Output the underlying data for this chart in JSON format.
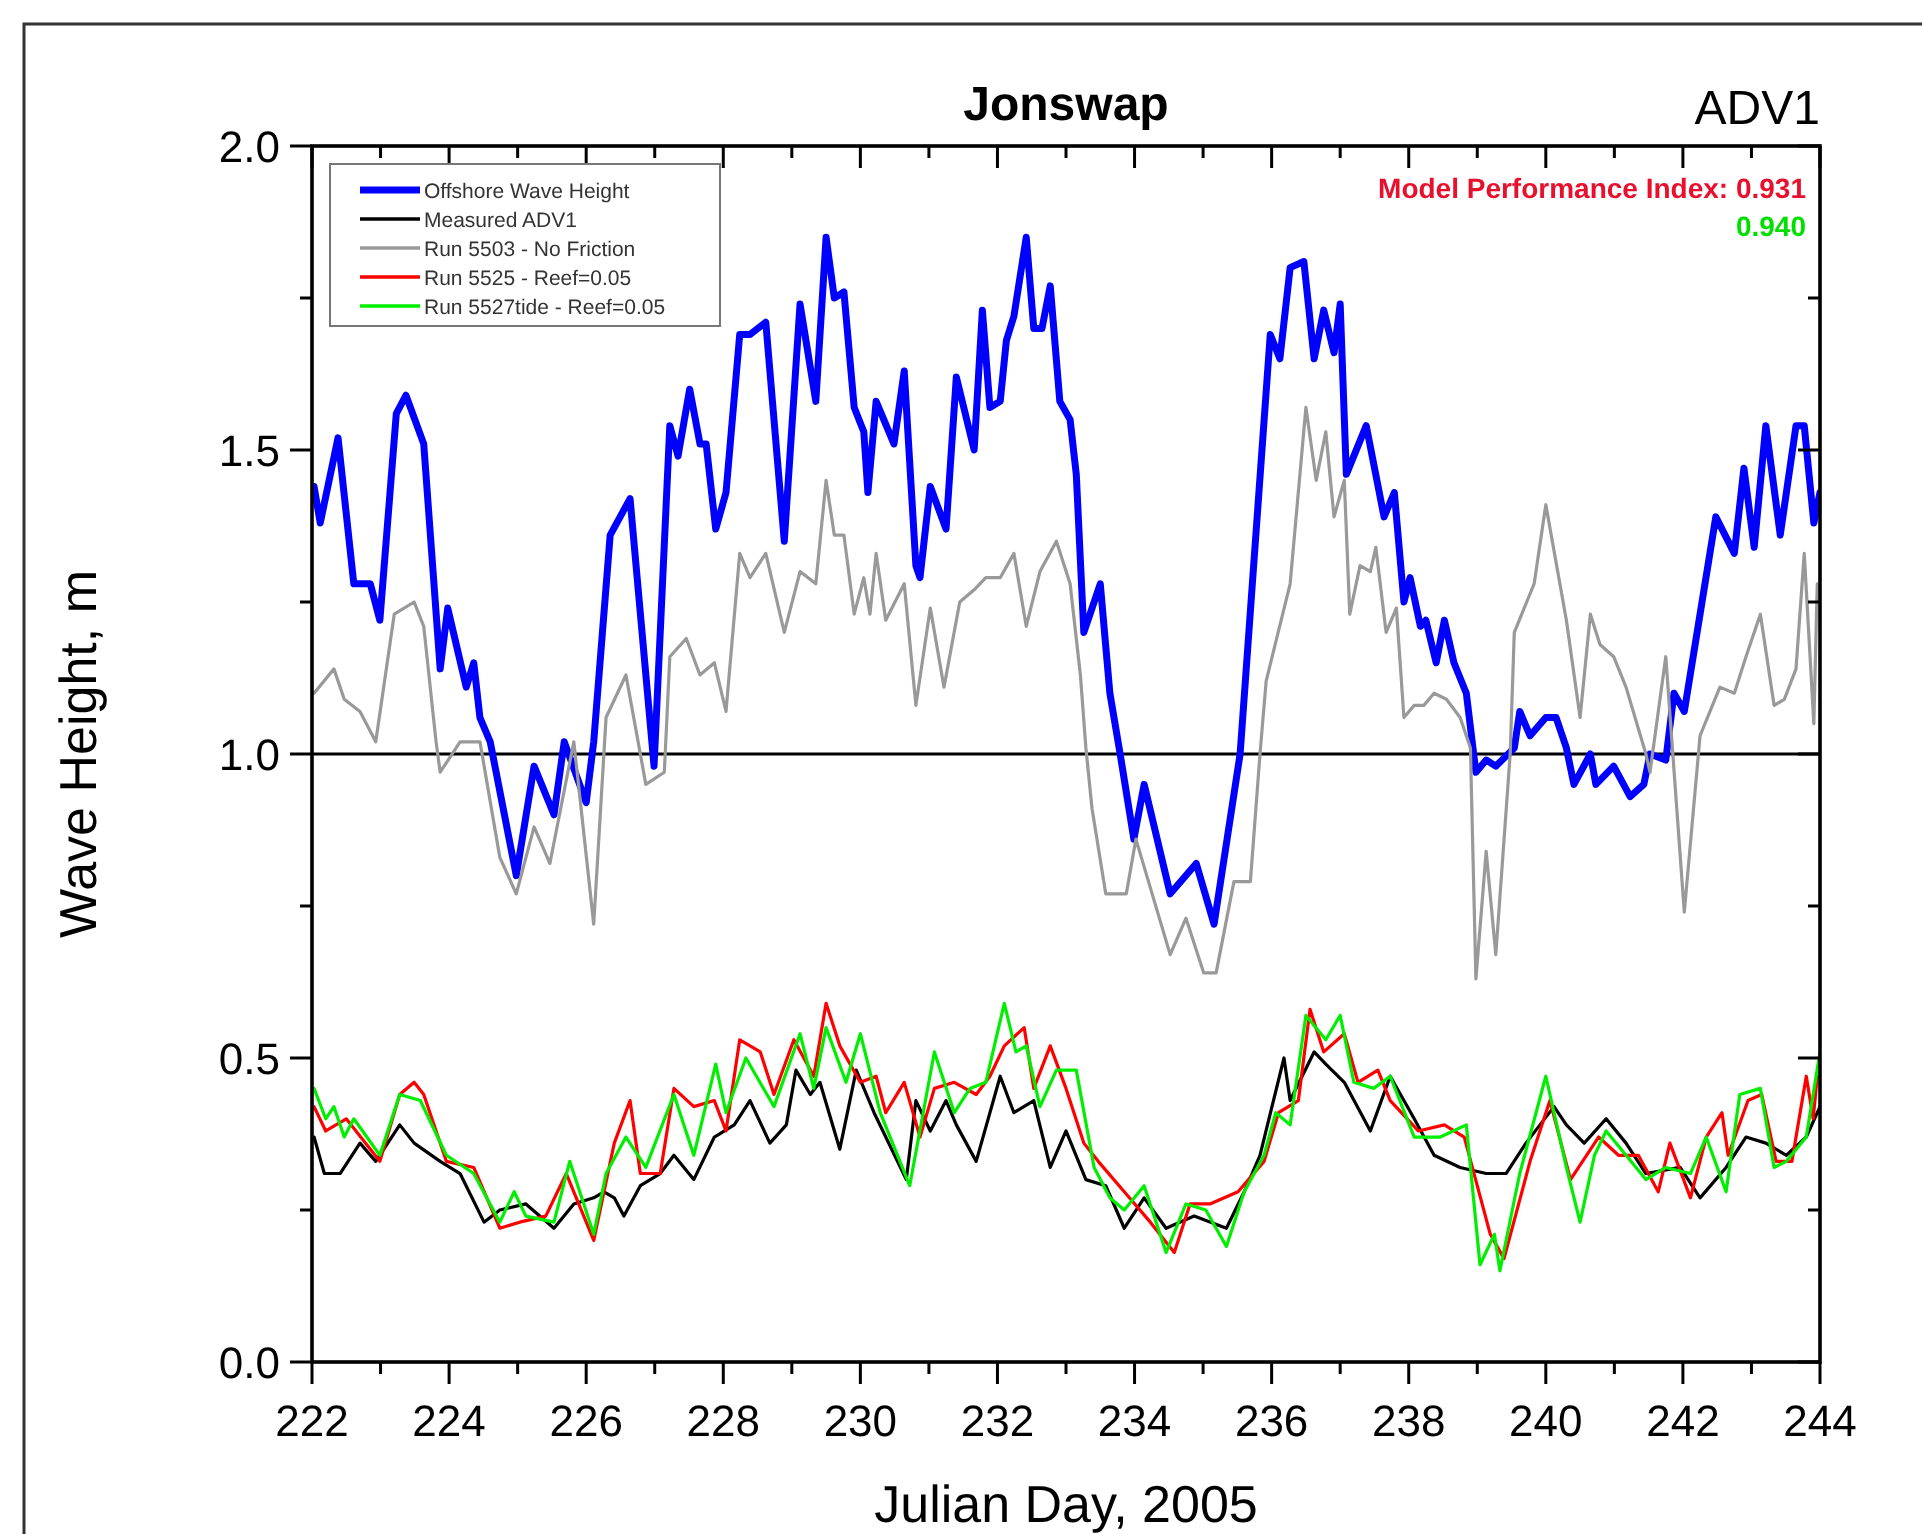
{
  "chart_data": {
    "type": "line",
    "title": "Jonswap",
    "subtitle": "ADV1",
    "xlabel": "Julian Day, 2005",
    "ylabel": "Wave Height, m",
    "annotations": [
      "Model Performance Index: 0.931",
      "0.940"
    ],
    "xlim": [
      222,
      244
    ],
    "ylim": [
      0,
      2
    ],
    "xticks": [
      222,
      {
        "value": 223,
        "label": null
      },
      224,
      {
        "value": 225,
        "label": null
      },
      226,
      {
        "value": 227,
        "label": null
      },
      228,
      {
        "value": 229,
        "label": null
      },
      230,
      {
        "value": 231,
        "label": null
      },
      232,
      {
        "value": 233,
        "label": null
      },
      234,
      {
        "value": 235,
        "label": null
      },
      236,
      {
        "value": 237,
        "label": null
      },
      238,
      {
        "value": 239,
        "label": null
      },
      240,
      {
        "value": 241,
        "label": null
      },
      242,
      {
        "value": 243,
        "label": null
      },
      244
    ],
    "yticks": [
      {
        "value": 0,
        "label": "0.0"
      },
      {
        "value": 0.25,
        "label": null
      },
      {
        "value": 0.5,
        "label": "0.5"
      },
      {
        "value": 0.75,
        "label": null
      },
      {
        "value": 1,
        "label": "1.0"
      },
      {
        "value": 1.25,
        "label": null
      },
      {
        "value": 1.5,
        "label": "1.5"
      },
      {
        "value": 1.75,
        "label": null
      },
      {
        "value": 2,
        "label": "2.0"
      }
    ],
    "ref_lines": [
      {
        "axis": "y",
        "value": 1,
        "color": "#000000"
      }
    ],
    "legend": "top left",
    "grid": false,
    "marker": "none",
    "line_style": "solid",
    "series": [
      {
        "name": "Offshore Wave Height",
        "color": "#0000ff",
        "x": [
          222.03,
          222.12,
          222.38,
          222.61,
          222.85,
          222.99,
          223.23,
          223.37,
          223.63,
          223.87,
          223.98,
          224.25,
          224.36,
          224.45,
          224.6,
          224.98,
          225.24,
          225.53,
          225.68,
          226.0,
          226.11,
          226.35,
          226.64,
          226.99,
          227.22,
          227.34,
          227.51,
          227.66,
          227.75,
          227.89,
          228.04,
          228.24,
          228.39,
          228.62,
          228.89,
          229.12,
          229.35,
          229.5,
          229.62,
          229.76,
          229.91,
          230.05,
          230.11,
          230.23,
          230.49,
          230.64,
          230.81,
          230.87,
          231.02,
          231.25,
          231.4,
          231.66,
          231.78,
          231.89,
          232.04,
          232.13,
          232.24,
          232.42,
          232.53,
          232.65,
          232.77,
          232.91,
          233.06,
          233.15,
          233.26,
          233.5,
          233.64,
          233.79,
          233.99,
          234.14,
          234.52,
          234.9,
          235.16,
          235.54,
          235.98,
          236.12,
          236.27,
          236.47,
          236.62,
          236.76,
          236.91,
          237.0,
          237.09,
          237.38,
          237.64,
          237.79,
          237.93,
          238.02,
          238.17,
          238.25,
          238.4,
          238.52,
          238.66,
          238.84,
          238.98,
          239.13,
          239.27,
          239.54,
          239.62,
          239.77,
          240.0,
          240.15,
          240.3,
          240.41,
          240.65,
          240.73,
          240.99,
          241.23,
          241.43,
          241.52,
          241.75,
          241.87,
          242.02,
          242.48,
          242.75,
          242.89,
          243.04,
          243.21,
          243.42,
          243.65,
          243.77,
          243.91,
          244.0
        ],
        "values": [
          1.44,
          1.38,
          1.52,
          1.28,
          1.28,
          1.22,
          1.56,
          1.59,
          1.51,
          1.14,
          1.24,
          1.11,
          1.15,
          1.06,
          1.02,
          0.8,
          0.98,
          0.9,
          1.02,
          0.92,
          1.02,
          1.36,
          1.42,
          0.98,
          1.54,
          1.49,
          1.6,
          1.51,
          1.51,
          1.37,
          1.43,
          1.69,
          1.69,
          1.71,
          1.35,
          1.74,
          1.58,
          1.85,
          1.75,
          1.76,
          1.57,
          1.53,
          1.43,
          1.58,
          1.51,
          1.63,
          1.31,
          1.29,
          1.44,
          1.37,
          1.62,
          1.5,
          1.73,
          1.57,
          1.58,
          1.68,
          1.72,
          1.85,
          1.7,
          1.7,
          1.77,
          1.58,
          1.55,
          1.46,
          1.2,
          1.28,
          1.1,
          1.0,
          0.86,
          0.95,
          0.77,
          0.82,
          0.72,
          1.0,
          1.69,
          1.65,
          1.8,
          1.81,
          1.65,
          1.73,
          1.66,
          1.74,
          1.46,
          1.54,
          1.39,
          1.43,
          1.25,
          1.29,
          1.21,
          1.22,
          1.15,
          1.22,
          1.15,
          1.1,
          0.97,
          0.99,
          0.98,
          1.01,
          1.07,
          1.03,
          1.06,
          1.06,
          1.01,
          0.95,
          1.0,
          0.95,
          0.98,
          0.93,
          0.95,
          1.0,
          0.99,
          1.1,
          1.07,
          1.39,
          1.33,
          1.47,
          1.34,
          1.54,
          1.36,
          1.54,
          1.54,
          1.38,
          1.43
        ]
      },
      {
        "name": "Measured ADV1",
        "color": "#000000",
        "x": [
          222.03,
          222.18,
          222.41,
          222.7,
          222.93,
          223.28,
          223.49,
          223.87,
          224.16,
          224.51,
          224.74,
          225.12,
          225.53,
          225.82,
          226.11,
          226.26,
          226.41,
          226.55,
          226.79,
          227.08,
          227.28,
          227.57,
          227.87,
          228.16,
          228.39,
          228.68,
          228.92,
          229.06,
          229.27,
          229.41,
          229.7,
          229.94,
          230.2,
          230.67,
          230.81,
          231.02,
          231.25,
          231.4,
          231.69,
          232.04,
          232.24,
          232.53,
          232.77,
          233.0,
          233.29,
          233.58,
          233.85,
          234.14,
          234.46,
          234.87,
          235.34,
          235.6,
          235.83,
          236.18,
          236.27,
          236.62,
          236.79,
          237.06,
          237.44,
          237.73,
          238.08,
          238.37,
          238.75,
          239.13,
          239.42,
          239.71,
          240.12,
          240.3,
          240.56,
          240.88,
          241.17,
          241.46,
          241.96,
          242.25,
          242.63,
          242.92,
          243.21,
          243.51,
          243.8,
          244.0
        ],
        "values": [
          0.37,
          0.31,
          0.31,
          0.36,
          0.33,
          0.39,
          0.36,
          0.33,
          0.31,
          0.23,
          0.25,
          0.26,
          0.22,
          0.26,
          0.27,
          0.28,
          0.27,
          0.24,
          0.29,
          0.31,
          0.34,
          0.3,
          0.37,
          0.39,
          0.43,
          0.36,
          0.39,
          0.48,
          0.44,
          0.46,
          0.35,
          0.48,
          0.41,
          0.3,
          0.43,
          0.38,
          0.43,
          0.39,
          0.33,
          0.47,
          0.41,
          0.43,
          0.32,
          0.38,
          0.3,
          0.29,
          0.22,
          0.27,
          0.22,
          0.24,
          0.22,
          0.28,
          0.34,
          0.5,
          0.43,
          0.51,
          0.49,
          0.46,
          0.38,
          0.47,
          0.4,
          0.34,
          0.32,
          0.31,
          0.31,
          0.36,
          0.42,
          0.39,
          0.36,
          0.4,
          0.36,
          0.31,
          0.32,
          0.27,
          0.32,
          0.37,
          0.36,
          0.34,
          0.37,
          0.42
        ]
      },
      {
        "name": "Run 5503 - No Friction",
        "color": "#999999",
        "x": [
          222.03,
          222.32,
          222.47,
          222.7,
          222.93,
          223.2,
          223.49,
          223.63,
          223.81,
          223.87,
          224.16,
          224.45,
          224.74,
          224.98,
          225.24,
          225.47,
          225.82,
          226.11,
          226.29,
          226.58,
          226.79,
          226.87,
          227.14,
          227.22,
          227.46,
          227.66,
          227.87,
          228.04,
          228.24,
          228.39,
          228.62,
          228.89,
          229.12,
          229.35,
          229.5,
          229.62,
          229.76,
          229.91,
          230.05,
          230.14,
          230.23,
          230.37,
          230.64,
          230.81,
          231.02,
          231.22,
          231.45,
          231.66,
          231.83,
          232.04,
          232.24,
          232.42,
          232.62,
          232.86,
          233.06,
          233.21,
          233.29,
          233.38,
          233.58,
          233.88,
          234.02,
          234.52,
          234.75,
          235.01,
          235.19,
          235.45,
          235.69,
          235.83,
          235.92,
          236.27,
          236.5,
          236.65,
          236.79,
          236.91,
          237.06,
          237.14,
          237.29,
          237.44,
          237.52,
          237.67,
          237.82,
          237.93,
          238.08,
          238.22,
          238.37,
          238.55,
          238.75,
          238.9,
          238.98,
          239.13,
          239.27,
          239.48,
          239.54,
          239.83,
          240.0,
          240.3,
          240.5,
          240.65,
          240.79,
          240.99,
          241.17,
          241.46,
          241.52,
          241.75,
          242.02,
          242.25,
          242.54,
          242.75,
          242.92,
          243.13,
          243.33,
          243.48,
          243.65,
          243.77,
          243.91,
          243.96
        ],
        "values": [
          1.1,
          1.14,
          1.09,
          1.07,
          1.02,
          1.23,
          1.25,
          1.21,
          1.02,
          0.97,
          1.02,
          1.02,
          0.83,
          0.77,
          0.88,
          0.82,
          1.02,
          0.72,
          1.06,
          1.13,
          1.0,
          0.95,
          0.97,
          1.16,
          1.19,
          1.13,
          1.15,
          1.07,
          1.33,
          1.29,
          1.33,
          1.2,
          1.3,
          1.28,
          1.45,
          1.36,
          1.36,
          1.23,
          1.29,
          1.23,
          1.33,
          1.22,
          1.28,
          1.08,
          1.24,
          1.11,
          1.25,
          1.27,
          1.29,
          1.29,
          1.33,
          1.21,
          1.3,
          1.35,
          1.28,
          1.13,
          1.01,
          0.91,
          0.77,
          0.77,
          0.86,
          0.67,
          0.73,
          0.64,
          0.64,
          0.79,
          0.79,
          1.0,
          1.12,
          1.28,
          1.57,
          1.45,
          1.53,
          1.39,
          1.45,
          1.23,
          1.31,
          1.3,
          1.34,
          1.2,
          1.24,
          1.06,
          1.08,
          1.08,
          1.1,
          1.09,
          1.06,
          1.01,
          0.63,
          0.84,
          0.67,
          1.0,
          1.2,
          1.28,
          1.41,
          1.22,
          1.06,
          1.23,
          1.18,
          1.16,
          1.11,
          1.0,
          0.97,
          1.16,
          0.74,
          1.03,
          1.11,
          1.1,
          1.16,
          1.23,
          1.08,
          1.09,
          1.14,
          1.33,
          1.05,
          1.28
        ]
      },
      {
        "name": "Run 5525 - Reef=0.05",
        "color": "#ff0000",
        "x": [
          222.03,
          222.2,
          222.5,
          222.99,
          223.28,
          223.49,
          223.63,
          223.96,
          224.36,
          224.74,
          225.03,
          225.41,
          225.71,
          226.11,
          226.41,
          226.64,
          226.79,
          227.08,
          227.28,
          227.57,
          227.87,
          228.04,
          228.24,
          228.54,
          228.74,
          229.03,
          229.32,
          229.5,
          229.7,
          230.0,
          230.23,
          230.37,
          230.64,
          230.87,
          231.08,
          231.37,
          231.69,
          231.89,
          232.1,
          232.39,
          232.53,
          232.77,
          233.0,
          233.26,
          233.47,
          233.85,
          234.23,
          234.58,
          234.81,
          235.1,
          235.51,
          235.89,
          236.1,
          236.39,
          236.56,
          236.76,
          237.06,
          237.26,
          237.55,
          237.73,
          238.14,
          238.52,
          238.81,
          239.19,
          239.39,
          239.77,
          240.06,
          240.36,
          240.77,
          241.06,
          241.35,
          241.64,
          241.81,
          242.11,
          242.34,
          242.57,
          242.66,
          242.95,
          243.15,
          243.36,
          243.59,
          243.8,
          243.9,
          243.96
        ],
        "values": [
          0.42,
          0.38,
          0.4,
          0.33,
          0.44,
          0.46,
          0.44,
          0.33,
          0.32,
          0.22,
          0.23,
          0.24,
          0.31,
          0.2,
          0.36,
          0.43,
          0.31,
          0.31,
          0.45,
          0.42,
          0.43,
          0.38,
          0.53,
          0.51,
          0.44,
          0.53,
          0.47,
          0.59,
          0.52,
          0.46,
          0.47,
          0.41,
          0.46,
          0.37,
          0.45,
          0.46,
          0.44,
          0.47,
          0.52,
          0.55,
          0.45,
          0.52,
          0.45,
          0.36,
          0.33,
          0.28,
          0.23,
          0.18,
          0.26,
          0.26,
          0.28,
          0.33,
          0.41,
          0.43,
          0.58,
          0.51,
          0.54,
          0.46,
          0.48,
          0.43,
          0.38,
          0.39,
          0.37,
          0.21,
          0.17,
          0.33,
          0.43,
          0.3,
          0.37,
          0.34,
          0.34,
          0.28,
          0.36,
          0.27,
          0.37,
          0.41,
          0.34,
          0.43,
          0.44,
          0.33,
          0.33,
          0.47,
          0.4,
          0.47
        ]
      },
      {
        "name": "Run 5527tide - Reef=0.05",
        "color": "#00ee00",
        "x": [
          222.03,
          222.2,
          222.32,
          222.47,
          222.61,
          222.99,
          223.28,
          223.58,
          223.96,
          224.36,
          224.74,
          224.95,
          225.12,
          225.53,
          225.76,
          226.11,
          226.29,
          226.58,
          226.87,
          227.28,
          227.57,
          227.89,
          228.04,
          228.33,
          228.74,
          229.12,
          229.32,
          229.5,
          229.79,
          230.0,
          230.29,
          230.72,
          231.08,
          231.37,
          231.6,
          231.83,
          232.1,
          232.27,
          232.42,
          232.62,
          232.86,
          233.15,
          233.41,
          233.64,
          233.85,
          234.14,
          234.46,
          234.75,
          235.04,
          235.34,
          235.6,
          235.89,
          236.06,
          236.27,
          236.5,
          236.79,
          237.0,
          237.2,
          237.49,
          237.73,
          238.08,
          238.46,
          238.84,
          239.04,
          239.25,
          239.33,
          239.62,
          240.0,
          240.3,
          240.5,
          240.71,
          240.88,
          241.17,
          241.46,
          241.75,
          242.11,
          242.34,
          242.63,
          242.83,
          243.13,
          243.33,
          243.51,
          243.8,
          244.0
        ],
        "values": [
          0.45,
          0.4,
          0.42,
          0.37,
          0.4,
          0.34,
          0.44,
          0.43,
          0.34,
          0.31,
          0.23,
          0.28,
          0.24,
          0.23,
          0.33,
          0.21,
          0.31,
          0.37,
          0.32,
          0.44,
          0.34,
          0.49,
          0.41,
          0.5,
          0.42,
          0.54,
          0.45,
          0.55,
          0.46,
          0.54,
          0.41,
          0.29,
          0.51,
          0.41,
          0.45,
          0.46,
          0.59,
          0.51,
          0.52,
          0.42,
          0.48,
          0.48,
          0.32,
          0.27,
          0.25,
          0.29,
          0.18,
          0.26,
          0.25,
          0.19,
          0.28,
          0.34,
          0.41,
          0.39,
          0.57,
          0.53,
          0.57,
          0.46,
          0.45,
          0.47,
          0.37,
          0.37,
          0.39,
          0.16,
          0.21,
          0.15,
          0.31,
          0.47,
          0.32,
          0.23,
          0.34,
          0.38,
          0.34,
          0.3,
          0.32,
          0.31,
          0.37,
          0.28,
          0.44,
          0.45,
          0.32,
          0.33,
          0.37,
          0.51
        ]
      }
    ]
  }
}
